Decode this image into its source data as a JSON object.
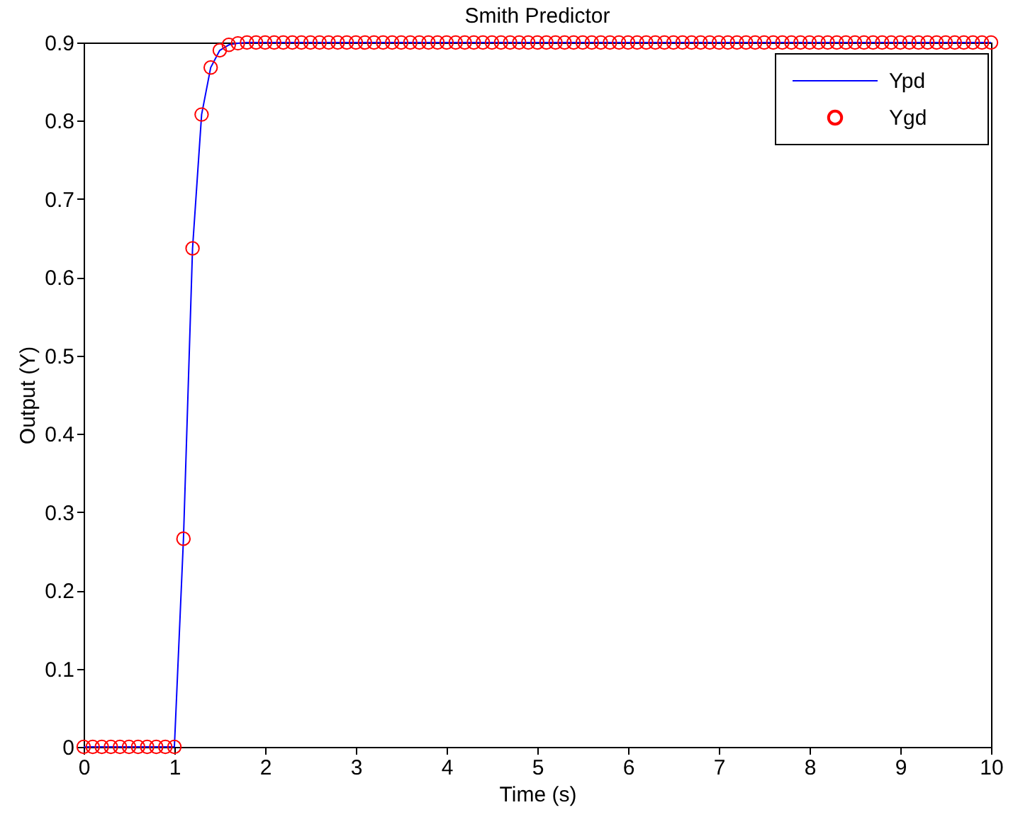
{
  "chart_data": {
    "type": "line",
    "title": "Smith Predictor",
    "xlabel": "Time (s)",
    "ylabel": "Output (Y)",
    "x": [
      0,
      0.1,
      0.2,
      0.3,
      0.4,
      0.5,
      0.6,
      0.7,
      0.8,
      0.9,
      1.0,
      1.1,
      1.2,
      1.3,
      1.4,
      1.5,
      1.6,
      1.7,
      1.8,
      1.9,
      2.0,
      2.1,
      2.2,
      2.3,
      2.4,
      2.5,
      2.6,
      2.7,
      2.8,
      2.9,
      3.0,
      3.1,
      3.2,
      3.3,
      3.4,
      3.5,
      3.6,
      3.7,
      3.8,
      3.9,
      4.0,
      4.1,
      4.2,
      4.3,
      4.4,
      4.5,
      4.6,
      4.7,
      4.8,
      4.9,
      5.0,
      5.1,
      5.2,
      5.3,
      5.4,
      5.5,
      5.6,
      5.7,
      5.8,
      5.9,
      6.0,
      6.1,
      6.2,
      6.3,
      6.4,
      6.5,
      6.6,
      6.7,
      6.8,
      6.9,
      7.0,
      7.1,
      7.2,
      7.3,
      7.4,
      7.5,
      7.6,
      7.7,
      7.8,
      7.9,
      8.0,
      8.1,
      8.2,
      8.3,
      8.4,
      8.5,
      8.6,
      8.7,
      8.8,
      8.9,
      9.0,
      9.1,
      9.2,
      9.3,
      9.4,
      9.5,
      9.6,
      9.7,
      9.8,
      9.9,
      10.0
    ],
    "series": [
      {
        "name": "Ypd",
        "color": "#0000ff",
        "line_style": "solid",
        "marker": "none",
        "values": [
          0,
          0,
          0,
          0,
          0,
          0,
          0,
          0,
          0,
          0,
          0,
          0.266,
          0.637,
          0.808,
          0.868,
          0.89,
          0.897,
          0.899,
          0.9,
          0.9,
          0.9,
          0.9,
          0.9,
          0.9,
          0.9,
          0.9,
          0.9,
          0.9,
          0.9,
          0.9,
          0.9,
          0.9,
          0.9,
          0.9,
          0.9,
          0.9,
          0.9,
          0.9,
          0.9,
          0.9,
          0.9,
          0.9,
          0.9,
          0.9,
          0.9,
          0.9,
          0.9,
          0.9,
          0.9,
          0.9,
          0.9,
          0.9,
          0.9,
          0.9,
          0.9,
          0.9,
          0.9,
          0.9,
          0.9,
          0.9,
          0.9,
          0.9,
          0.9,
          0.9,
          0.9,
          0.9,
          0.9,
          0.9,
          0.9,
          0.9,
          0.9,
          0.9,
          0.9,
          0.9,
          0.9,
          0.9,
          0.9,
          0.9,
          0.9,
          0.9,
          0.9,
          0.9,
          0.9,
          0.9,
          0.9,
          0.9,
          0.9,
          0.9,
          0.9,
          0.9,
          0.9,
          0.9,
          0.9,
          0.9,
          0.9,
          0.9,
          0.9,
          0.9,
          0.9,
          0.9,
          0.9
        ]
      },
      {
        "name": "Ygd",
        "type": "scatter",
        "color": "#ff0000",
        "marker": "circle",
        "values": [
          0,
          0,
          0,
          0,
          0,
          0,
          0,
          0,
          0,
          0,
          0,
          0.266,
          0.637,
          0.808,
          0.868,
          0.89,
          0.897,
          0.899,
          0.9,
          0.9,
          0.9,
          0.9,
          0.9,
          0.9,
          0.9,
          0.9,
          0.9,
          0.9,
          0.9,
          0.9,
          0.9,
          0.9,
          0.9,
          0.9,
          0.9,
          0.9,
          0.9,
          0.9,
          0.9,
          0.9,
          0.9,
          0.9,
          0.9,
          0.9,
          0.9,
          0.9,
          0.9,
          0.9,
          0.9,
          0.9,
          0.9,
          0.9,
          0.9,
          0.9,
          0.9,
          0.9,
          0.9,
          0.9,
          0.9,
          0.9,
          0.9,
          0.9,
          0.9,
          0.9,
          0.9,
          0.9,
          0.9,
          0.9,
          0.9,
          0.9,
          0.9,
          0.9,
          0.9,
          0.9,
          0.9,
          0.9,
          0.9,
          0.9,
          0.9,
          0.9,
          0.9,
          0.9,
          0.9,
          0.9,
          0.9,
          0.9,
          0.9,
          0.9,
          0.9,
          0.9,
          0.9,
          0.9,
          0.9,
          0.9,
          0.9,
          0.9,
          0.9,
          0.9,
          0.9,
          0.9,
          0.9
        ]
      }
    ],
    "xlim": [
      0,
      10
    ],
    "xticks": [
      0,
      1,
      2,
      3,
      4,
      5,
      6,
      7,
      8,
      9,
      10
    ],
    "ylim": [
      0,
      0.9
    ],
    "yticks": [
      0,
      0.1,
      0.2,
      0.3,
      0.4,
      0.5,
      0.6,
      0.7,
      0.8,
      0.9
    ],
    "grid": false,
    "legend": "top right"
  }
}
